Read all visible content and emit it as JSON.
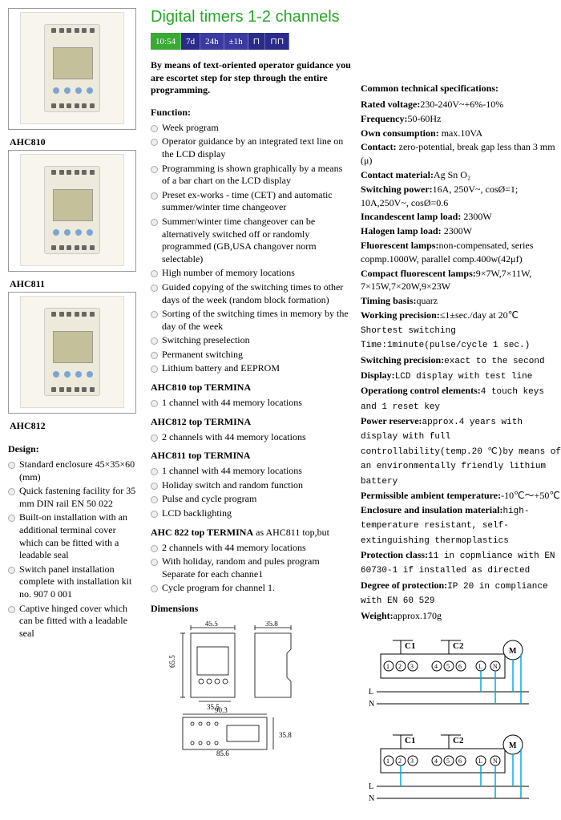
{
  "title": "Digital timers 1-2 channels",
  "badges": [
    {
      "label": "10:54",
      "bg": "#3aaa35"
    },
    {
      "label": "7d",
      "bg": "#2b2b8c"
    },
    {
      "label": "24h",
      "bg": "#3a3aa0"
    },
    {
      "label": "±1h",
      "bg": "#3a3aa0"
    },
    {
      "label": "⊓",
      "bg": "#2b2b8c"
    },
    {
      "label": "⊓⊓",
      "bg": "#2b2b8c"
    }
  ],
  "intro": "By means of text-oriented operator guidance you are escortet step for step through the entire programming.",
  "products": [
    {
      "model": "AHC810"
    },
    {
      "model": "AHC811"
    },
    {
      "model": "AHC812"
    }
  ],
  "function_heading": "Function:",
  "functions": [
    "Week program",
    "Operator guidance by an integrated text line on the LCD display",
    "Programming is shown graphically by a means of a bar chart on the LCD display",
    "Preset ex-works - time (CET) and automatic summer/winter time changeover",
    "Summer/winter time changeover can be alternatively switched  off or randomly programmed (GB,USA changover norm selectable)",
    "High number of memory locations",
    "Guided copying of the switching times to other days of the week (random block formation)",
    "Sorting of the switching times in memory by the day of the week",
    "Switching preselection",
    "Permanent switching",
    "Lithium battery and EEPROM"
  ],
  "variants": [
    {
      "heading": "AHC810 top TERMINA",
      "items": [
        "1 channel with 44 memory locations"
      ]
    },
    {
      "heading": "AHC812 top TERMINA",
      "items": [
        "2 channels with 44 memory locations"
      ]
    },
    {
      "heading": "AHC811 top TERMINA",
      "items": [
        "1 channel with 44 memory locations",
        "Holiday switch and random function",
        "Pulse and cycle program",
        "LCD backlighting"
      ]
    },
    {
      "heading": "AHC 822 top TERMINA",
      "suffix": " as AHC811 top,but",
      "items": [
        "2 channels with 44 memory locations",
        "With holiday, random and pules program Separate for each channe1",
        "Cycle program for channel 1."
      ]
    }
  ],
  "design_heading": "Design:",
  "design": [
    "Standard enclosure 45×35×60 (mm)",
    "Quick fastening facility for 35 mm DIN rail EN 50 022",
    "Built-on installation with an additional terminal cover which can be fitted with  a leadable seal",
    "Switch panel installation complete with installation kit no. 907 0 001",
    "Captive hinged cover which can be fitted with a leadable seal"
  ],
  "dimensions_heading": "Dimensions",
  "dims": {
    "w1": "45.5",
    "w2": "35.8",
    "h": "65.5",
    "w3": "35.5",
    "w4": "90.3",
    "w5": "85.6",
    "h2": "35.8"
  },
  "specs_heading": "Common  technical specifications:",
  "specs": [
    {
      "k": "Rated voltage:",
      "v": "230-240V~+6%-10%"
    },
    {
      "k": "Frequency:",
      "v": "50-60Hz"
    },
    {
      "k": "Own consumption:",
      "v": " max.10VA"
    },
    {
      "k": "Contact:",
      "v": " zero-potential, break gap less than 3 mm (μ)"
    },
    {
      "k": "Contact material:",
      "v": "Ag Sn O₂"
    },
    {
      "k": "Switching power:",
      "v": "16A, 250V~, cosØ=1; 10A,250V~, cosØ=0.6"
    },
    {
      "k": "Incandescent lamp load:",
      "v": " 2300W"
    },
    {
      "k": "Halogen lamp load:",
      "v": " 2300W"
    },
    {
      "k": "Fluorescent  lamps:",
      "v": "non-compensated, series copmp.1000W, parallel comp.400w(42μf)"
    },
    {
      "k": "Compact fluorescent lamps:",
      "v": "9×7W,7×11W, 7×15W,7×20W,9×23W"
    },
    {
      "k": "Timing  basis:",
      "v": "quarz"
    },
    {
      "k": "Working precision:",
      "v": "≤1±sec./day at 20℃"
    },
    {
      "k": "",
      "v": "Shortest switching Time:1minute(pulse/cycle 1 sec.)",
      "tt": true
    },
    {
      "k": "Switching precision:",
      "v": "exact to the second",
      "tt": true
    },
    {
      "k": "Display:",
      "v": "LCD display with test line",
      "tt": true
    },
    {
      "k": "Operationg control elements:",
      "v": "4 touch keys and 1 reset key",
      "tt": true
    },
    {
      "k": "Power reserve:",
      "v": "approx.4 years with display with full controllability(temp.20 ℃)by means of an environmentally friendly lithium battery",
      "tt": true
    },
    {
      "k": "Permissible ambient temperature:",
      "v": "-10℃～+50℃"
    },
    {
      "k": "Enclosure and insulation material:",
      "v": "high-temperature resistant, self-extinguishing thermoplastics",
      "tt": true
    },
    {
      "k": "Protection class:",
      "v": "11 in copmliance with EN  60730-1 if installed as directed",
      "tt": true
    },
    {
      "k": "Degree of protection:",
      "v": "IP 20 in compliance with EN 60 529",
      "tt": true
    },
    {
      "k": "Weight:",
      "v": "approx.170g"
    }
  ],
  "wiring": {
    "c1": "C1",
    "c2": "C2",
    "m": "M",
    "l": "L",
    "n": "N"
  }
}
